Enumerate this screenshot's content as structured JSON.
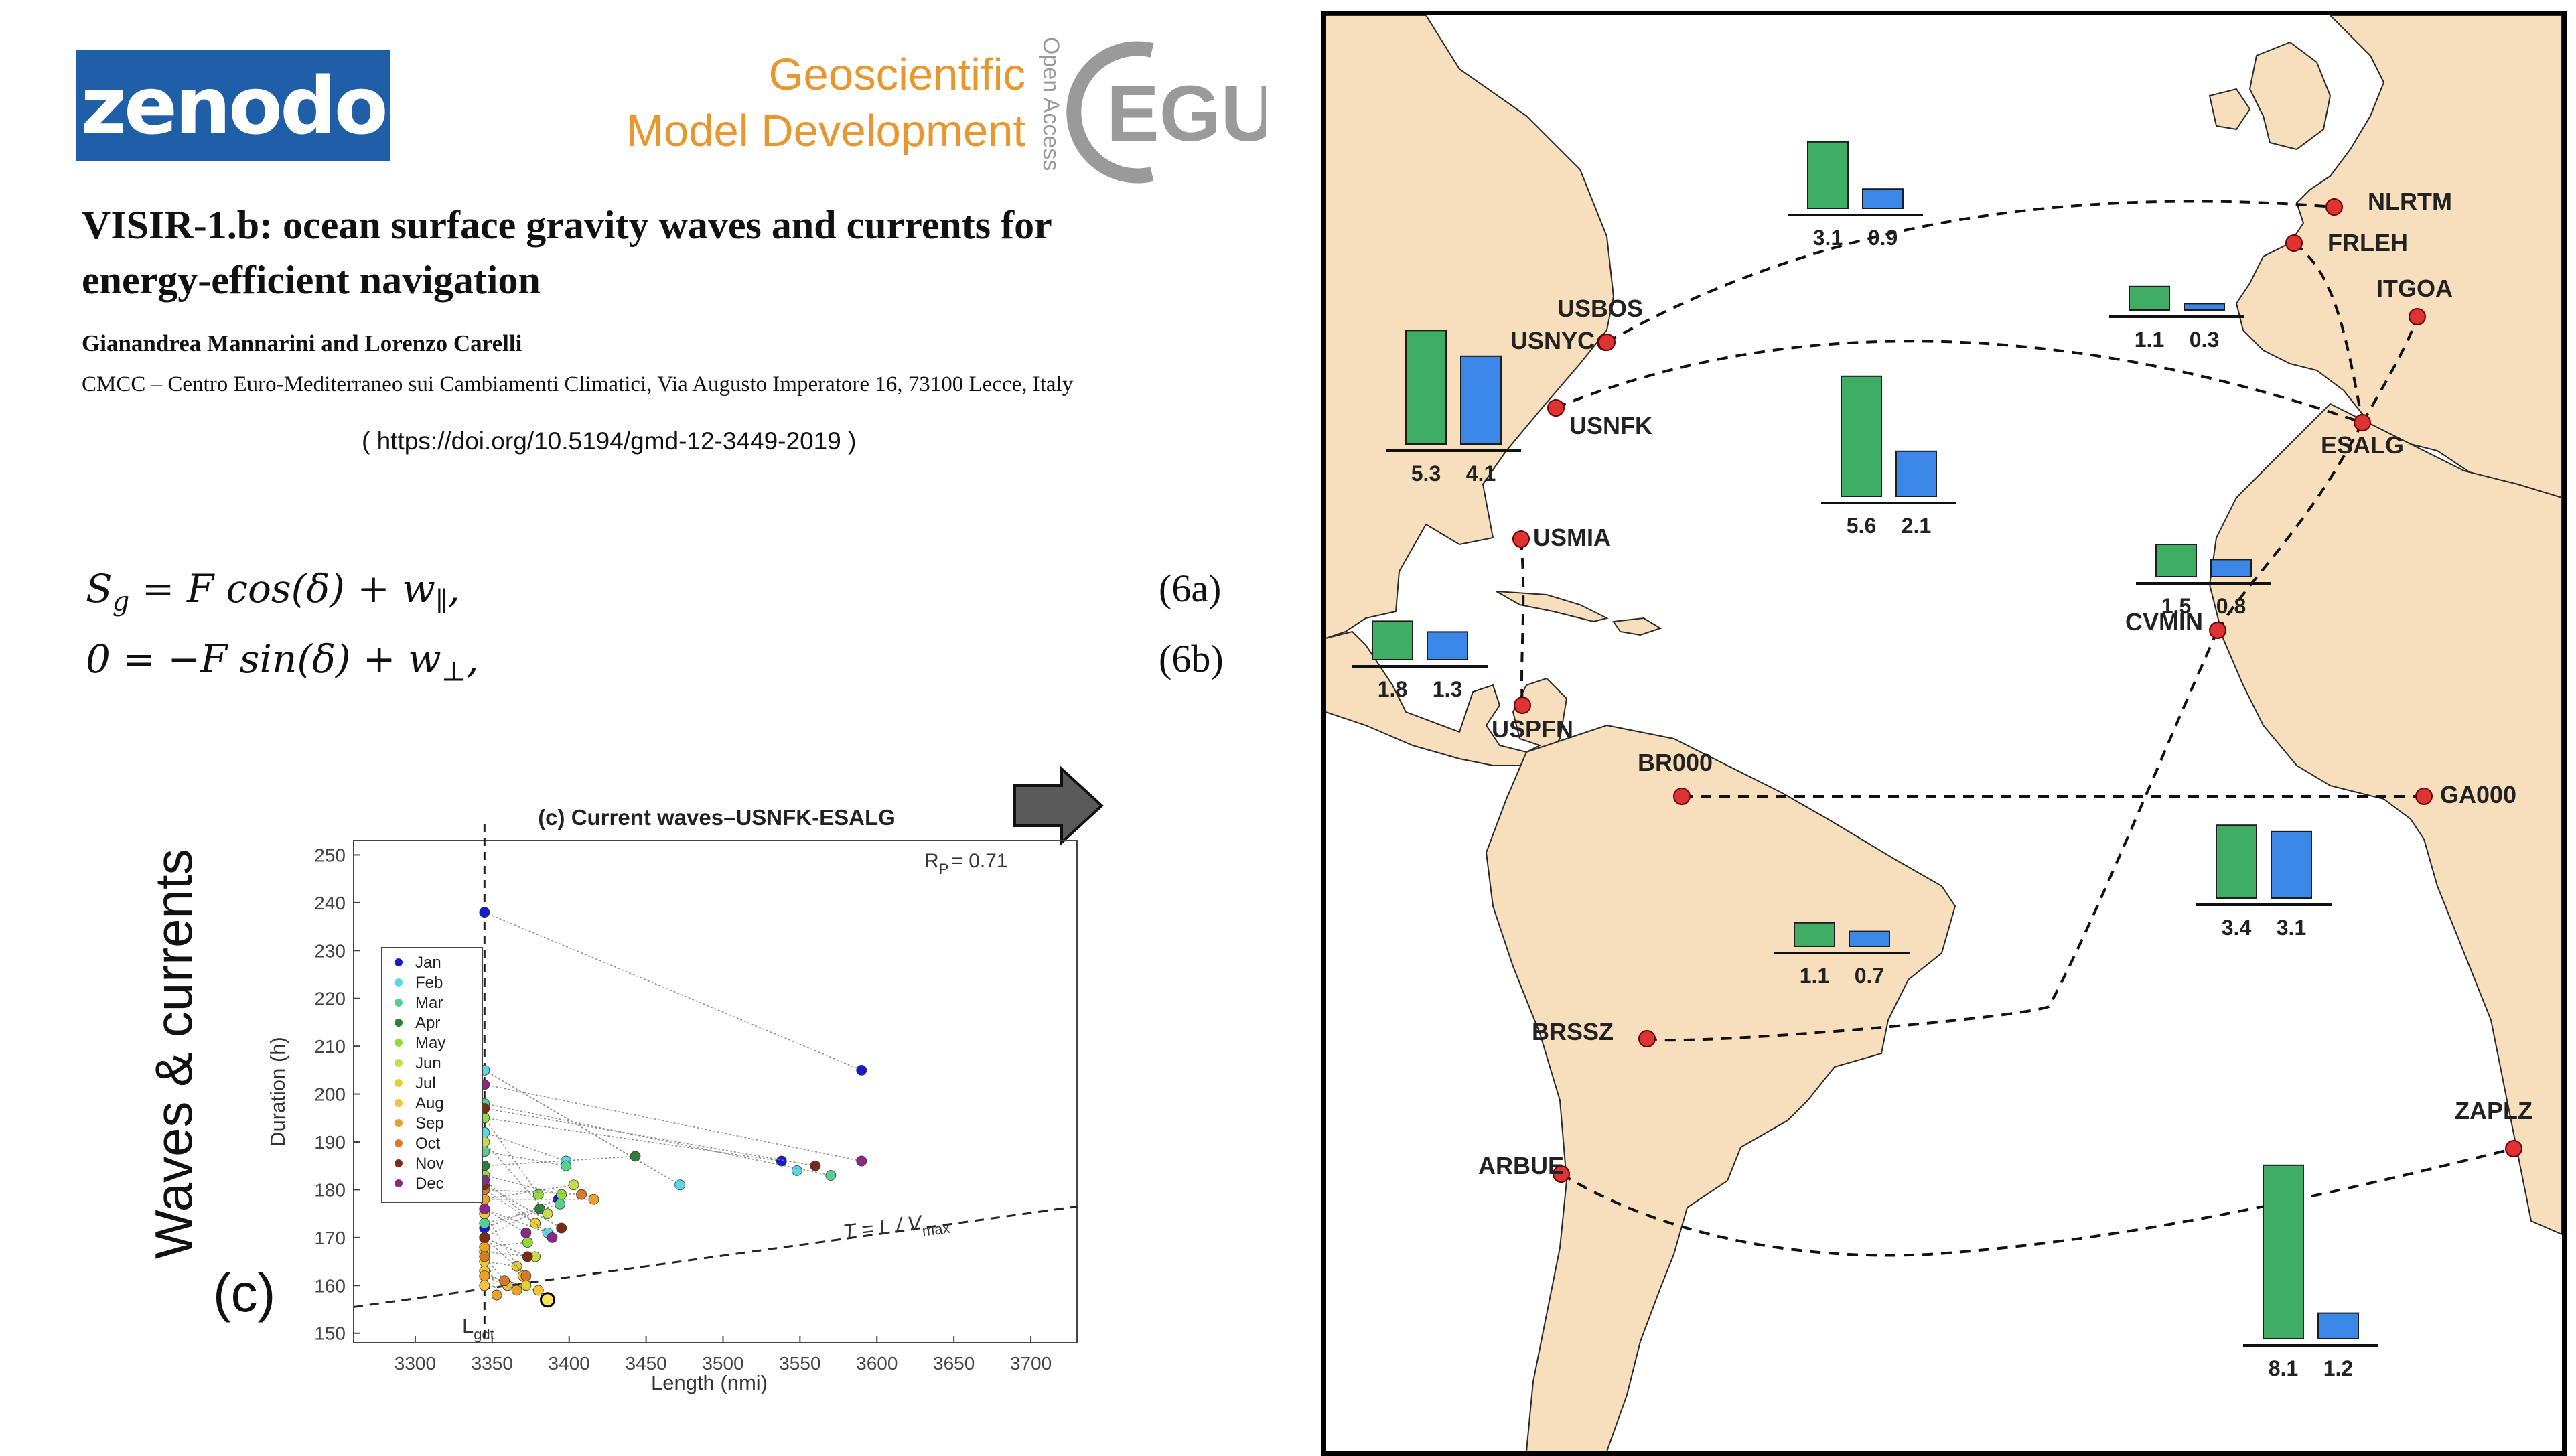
{
  "logos": {
    "zenodo": "zenodo",
    "journal_line1": "Geoscientific",
    "journal_line2": "Model Development",
    "open_access": "Open Access",
    "egu": "EGU"
  },
  "paper": {
    "title": "VISIR-1.b: ocean surface gravity waves and currents for energy-efficient navigation",
    "authors": "Gianandrea Mannarini and Lorenzo Carelli",
    "affiliation": "CMCC – Centro Euro-Mediterraneo sui Cambiamenti Climatici, Via Augusto Imperatore 16, 73100 Lecce, Italy",
    "doi": "( https://doi.org/10.5194/gmd-12-3449-2019 )"
  },
  "equations": {
    "eq_a_lhs": "S",
    "eq_a_sub": "g",
    "eq_a_rhs": " = F cos(δ) + w",
    "eq_a_sub2": "∥",
    "eq_a_end": ",",
    "eq_a_label": "(6a)",
    "eq_b": "0 = −F sin(δ) + w",
    "eq_b_sub": "⊥",
    "eq_b_end": ",",
    "eq_b_label": "(6b)"
  },
  "panel": {
    "side_label": "Waves & currents",
    "letter": "(c)"
  },
  "chart_data": {
    "type": "scatter",
    "title": "(c) Current waves–USNFK-ESALG",
    "xlabel": "Length (nmi)",
    "ylabel": "Duration (h)",
    "xlim": [
      3260,
      3730
    ],
    "ylim": [
      148,
      253
    ],
    "xticks": [
      3300,
      3350,
      3400,
      3450,
      3500,
      3550,
      3600,
      3650,
      3700
    ],
    "yticks": [
      150,
      160,
      170,
      180,
      190,
      200,
      210,
      220,
      230,
      240,
      250
    ],
    "annotation_rp": "R",
    "annotation_rp_sub": "P",
    "annotation_rp_value": "= 0.71",
    "annotation_line": "T = L / V",
    "annotation_line_sub": "max",
    "annotation_lgdt": "L",
    "annotation_lgdt_sub": "gdt",
    "vertical_line_x": 3345,
    "bound_line": [
      [
        3260,
        155.5
      ],
      [
        3730,
        176.5
      ]
    ],
    "legend": [
      {
        "name": "Jan",
        "color": "#1a1acd"
      },
      {
        "name": "Feb",
        "color": "#5ad8e8"
      },
      {
        "name": "Mar",
        "color": "#57cf8f"
      },
      {
        "name": "Apr",
        "color": "#2f7d3a"
      },
      {
        "name": "May",
        "color": "#8fdc3c"
      },
      {
        "name": "Jun",
        "color": "#c9dc47"
      },
      {
        "name": "Jul",
        "color": "#e6d12c"
      },
      {
        "name": "Aug",
        "color": "#f5c23b"
      },
      {
        "name": "Sep",
        "color": "#e8a12a"
      },
      {
        "name": "Oct",
        "color": "#d87b28"
      },
      {
        "name": "Nov",
        "color": "#7e2b16"
      },
      {
        "name": "Dec",
        "color": "#8a2a86"
      }
    ],
    "series": [
      {
        "month": "Jan",
        "points": [
          [
            3345,
            238
          ],
          [
            3590,
            205
          ],
          [
            3345,
            195
          ],
          [
            3538,
            186
          ],
          [
            3345,
            172
          ],
          [
            3393,
            178
          ]
        ]
      },
      {
        "month": "Feb",
        "points": [
          [
            3345,
            205
          ],
          [
            3472,
            181
          ],
          [
            3345,
            192
          ],
          [
            3398,
            186
          ],
          [
            3345,
            176
          ],
          [
            3386,
            171
          ],
          [
            3548,
            184
          ]
        ]
      },
      {
        "month": "Mar",
        "points": [
          [
            3345,
            198
          ],
          [
            3570,
            183
          ],
          [
            3345,
            188
          ],
          [
            3398,
            185
          ],
          [
            3345,
            173
          ],
          [
            3394,
            177
          ]
        ]
      },
      {
        "month": "Apr",
        "points": [
          [
            3345,
            185
          ],
          [
            3443,
            187
          ],
          [
            3345,
            170
          ],
          [
            3381,
            176
          ]
        ]
      },
      {
        "month": "May",
        "points": [
          [
            3345,
            195
          ],
          [
            3380,
            179
          ],
          [
            3345,
            183
          ],
          [
            3395,
            179
          ],
          [
            3345,
            168
          ],
          [
            3373,
            169
          ]
        ]
      },
      {
        "month": "Jun",
        "points": [
          [
            3345,
            190
          ],
          [
            3386,
            175
          ],
          [
            3345,
            178
          ],
          [
            3403,
            181
          ],
          [
            3345,
            167
          ],
          [
            3378,
            166
          ]
        ]
      },
      {
        "month": "Jul",
        "points": [
          [
            3345,
            180
          ],
          [
            3378,
            173
          ],
          [
            3345,
            165
          ],
          [
            3366,
            164
          ],
          [
            3345,
            162
          ],
          [
            3372,
            160
          ]
        ]
      },
      {
        "month": "Aug",
        "points": [
          [
            3345,
            175
          ],
          [
            3370,
            162
          ],
          [
            3345,
            163
          ],
          [
            3360,
            160
          ],
          [
            3345,
            160
          ],
          [
            3380,
            159
          ]
        ]
      },
      {
        "month": "Sep",
        "points": [
          [
            3345,
            178
          ],
          [
            3416,
            178
          ],
          [
            3345,
            168
          ],
          [
            3353,
            158
          ],
          [
            3345,
            162
          ],
          [
            3366,
            159
          ]
        ]
      },
      {
        "month": "Oct",
        "points": [
          [
            3345,
            180
          ],
          [
            3408,
            179
          ],
          [
            3345,
            170
          ],
          [
            3372,
            162
          ],
          [
            3345,
            166
          ],
          [
            3358,
            161
          ]
        ]
      },
      {
        "month": "Nov",
        "points": [
          [
            3345,
            197
          ],
          [
            3560,
            185
          ],
          [
            3345,
            181
          ],
          [
            3395,
            172
          ],
          [
            3345,
            170
          ],
          [
            3373,
            166
          ]
        ]
      },
      {
        "month": "Dec",
        "points": [
          [
            3345,
            202
          ],
          [
            3590,
            186
          ],
          [
            3345,
            182
          ],
          [
            3389,
            170
          ],
          [
            3345,
            176
          ],
          [
            3372,
            171
          ]
        ]
      }
    ],
    "highlight_point": [
      3386,
      157
    ]
  },
  "map": {
    "land_color": "#f7dfbd",
    "sea_color": "#ffffff",
    "bar_green": "#3fae64",
    "bar_blue": "#3a87e8",
    "ports": [
      {
        "code": "NLRTM"
      },
      {
        "code": "FRLEH"
      },
      {
        "code": "ITGOA"
      },
      {
        "code": "USBOS"
      },
      {
        "code": "USNYC"
      },
      {
        "code": "USNFK"
      },
      {
        "code": "ESALG"
      },
      {
        "code": "USMIA"
      },
      {
        "code": "CVMIN"
      },
      {
        "code": "USPFN"
      },
      {
        "code": "BR000"
      },
      {
        "code": "GA000"
      },
      {
        "code": "BRSSZ"
      },
      {
        "code": "ZAPLZ"
      },
      {
        "code": "ARBUE"
      }
    ],
    "bar_groups": [
      {
        "green": 3.1,
        "blue": 0.9,
        "green_label": "3.1",
        "blue_label": "0.9"
      },
      {
        "green": 1.1,
        "blue": 0.3,
        "green_label": "1.1",
        "blue_label": "0.3"
      },
      {
        "green": 5.3,
        "blue": 4.1,
        "green_label": "5.3",
        "blue_label": "4.1"
      },
      {
        "green": 5.6,
        "blue": 2.1,
        "green_label": "5.6",
        "blue_label": "2.1"
      },
      {
        "green": 1.5,
        "blue": 0.8,
        "green_label": "1.5",
        "blue_label": "0.8"
      },
      {
        "green": 1.8,
        "blue": 1.3,
        "green_label": "1.8",
        "blue_label": "1.3"
      },
      {
        "green": 3.4,
        "blue": 3.1,
        "green_label": "3.4",
        "blue_label": "3.1"
      },
      {
        "green": 1.1,
        "blue": 0.7,
        "green_label": "1.1",
        "blue_label": "0.7"
      },
      {
        "green": 8.1,
        "blue": 1.2,
        "green_label": "8.1",
        "blue_label": "1.2"
      }
    ]
  }
}
